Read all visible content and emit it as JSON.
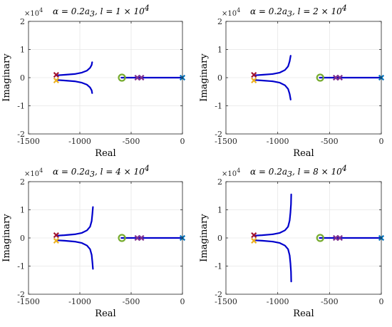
{
  "chart_data": [
    {
      "type": "line",
      "title": "α = 0.2a₃, l = 1 × 10⁴",
      "title_main": "α = 0.2a",
      "title_sub": "3",
      "title_rest": ", l = 1 × 10",
      "title_exp": "4",
      "xlabel": "Real",
      "ylabel": "Imaginary",
      "xlim": [
        -1500,
        0
      ],
      "ylim": [
        -2,
        2
      ],
      "y_multiplier": "×10",
      "y_multiplier_exp": "4",
      "xticks": [
        "-1500",
        "-1000",
        "-500",
        "0"
      ],
      "yticks": [
        "2",
        "1",
        "0",
        "-1",
        "-2"
      ],
      "grid": true,
      "branch_tip": {
        "x": -880,
        "y": 0.55
      },
      "series": [
        {
          "color": "#0000cc",
          "x": [
            -1230,
            -1150,
            -1050,
            -980,
            -930,
            -900,
            -885,
            -880
          ],
          "y": [
            0.08,
            0.1,
            0.13,
            0.18,
            0.25,
            0.35,
            0.45,
            0.55
          ]
        },
        {
          "color": "#0000cc",
          "x": [
            -1230,
            -1150,
            -1050,
            -980,
            -930,
            -900,
            -885,
            -880
          ],
          "y": [
            -0.08,
            -0.1,
            -0.13,
            -0.18,
            -0.25,
            -0.35,
            -0.45,
            -0.55
          ]
        },
        {
          "color": "#0000cc",
          "x": [
            -595,
            -430,
            -300,
            -150,
            0
          ],
          "y": [
            0,
            0,
            0,
            0,
            0
          ]
        }
      ],
      "poles": [
        {
          "x": -1230,
          "y": 0.1,
          "color": "#a2142f"
        },
        {
          "x": -1230,
          "y": -0.1,
          "color": "#edb120"
        },
        {
          "x": -440,
          "y": 0,
          "color": "#7e2f8e"
        },
        {
          "x": -400,
          "y": 0,
          "color": "#7e2f8e"
        },
        {
          "x": 0,
          "y": 0,
          "color": "#0072bd"
        }
      ],
      "zeros": [
        {
          "x": -590,
          "y": 0,
          "color": "#77ac30"
        }
      ]
    },
    {
      "type": "line",
      "title": "α = 0.2a₃, l = 2 × 10⁴",
      "title_main": "α = 0.2a",
      "title_sub": "3",
      "title_rest": ", l = 2 × 10",
      "title_exp": "4",
      "xlabel": "Real",
      "ylabel": "Imaginary",
      "xlim": [
        -1500,
        0
      ],
      "ylim": [
        -2,
        2
      ],
      "y_multiplier": "×10",
      "y_multiplier_exp": "4",
      "xticks": [
        "-1500",
        "-1000",
        "-500",
        "0"
      ],
      "yticks": [
        "2",
        "1",
        "0",
        "-1",
        "-2"
      ],
      "grid": true,
      "branch_tip": {
        "x": -875,
        "y": 0.78
      },
      "series": [
        {
          "color": "#0000cc",
          "x": [
            -1230,
            -1150,
            -1050,
            -980,
            -930,
            -900,
            -885,
            -875
          ],
          "y": [
            0.08,
            0.1,
            0.13,
            0.18,
            0.27,
            0.4,
            0.58,
            0.78
          ]
        },
        {
          "color": "#0000cc",
          "x": [
            -1230,
            -1150,
            -1050,
            -980,
            -930,
            -900,
            -885,
            -875
          ],
          "y": [
            -0.08,
            -0.1,
            -0.13,
            -0.18,
            -0.27,
            -0.4,
            -0.58,
            -0.78
          ]
        },
        {
          "color": "#0000cc",
          "x": [
            -595,
            -430,
            -300,
            -150,
            0
          ],
          "y": [
            0,
            0,
            0,
            0,
            0
          ]
        }
      ],
      "poles": [
        {
          "x": -1230,
          "y": 0.1,
          "color": "#a2142f"
        },
        {
          "x": -1230,
          "y": -0.1,
          "color": "#edb120"
        },
        {
          "x": -440,
          "y": 0,
          "color": "#7e2f8e"
        },
        {
          "x": -400,
          "y": 0,
          "color": "#7e2f8e"
        },
        {
          "x": 0,
          "y": 0,
          "color": "#0072bd"
        }
      ],
      "zeros": [
        {
          "x": -590,
          "y": 0,
          "color": "#77ac30"
        }
      ]
    },
    {
      "type": "line",
      "title": "α = 0.2a₃, l = 4 × 10⁴",
      "title_main": "α = 0.2a",
      "title_sub": "3",
      "title_rest": ", l = 4 × 10",
      "title_exp": "4",
      "xlabel": "Real",
      "ylabel": "Imaginary",
      "xlim": [
        -1500,
        0
      ],
      "ylim": [
        -2,
        2
      ],
      "y_multiplier": "×10",
      "y_multiplier_exp": "4",
      "xticks": [
        "-1500",
        "-1000",
        "-500",
        "0"
      ],
      "yticks": [
        "2",
        "1",
        "0",
        "-1",
        "-2"
      ],
      "grid": true,
      "branch_tip": {
        "x": -872,
        "y": 1.1
      },
      "series": [
        {
          "color": "#0000cc",
          "x": [
            -1230,
            -1150,
            -1050,
            -980,
            -930,
            -900,
            -885,
            -878,
            -872
          ],
          "y": [
            0.08,
            0.1,
            0.13,
            0.18,
            0.27,
            0.4,
            0.6,
            0.85,
            1.1
          ]
        },
        {
          "color": "#0000cc",
          "x": [
            -1230,
            -1150,
            -1050,
            -980,
            -930,
            -900,
            -885,
            -878,
            -872
          ],
          "y": [
            -0.08,
            -0.1,
            -0.13,
            -0.18,
            -0.27,
            -0.4,
            -0.6,
            -0.85,
            -1.1
          ]
        },
        {
          "color": "#0000cc",
          "x": [
            -595,
            -430,
            -300,
            -150,
            0
          ],
          "y": [
            0,
            0,
            0,
            0,
            0
          ]
        }
      ],
      "poles": [
        {
          "x": -1230,
          "y": 0.1,
          "color": "#a2142f"
        },
        {
          "x": -1230,
          "y": -0.1,
          "color": "#edb120"
        },
        {
          "x": -440,
          "y": 0,
          "color": "#7e2f8e"
        },
        {
          "x": -400,
          "y": 0,
          "color": "#7e2f8e"
        },
        {
          "x": 0,
          "y": 0,
          "color": "#0072bd"
        }
      ],
      "zeros": [
        {
          "x": -590,
          "y": 0,
          "color": "#77ac30"
        }
      ]
    },
    {
      "type": "line",
      "title": "α = 0.2a₃, l = 8 × 10⁴",
      "title_main": "α = 0.2a",
      "title_sub": "3",
      "title_rest": ", l = 8 × 10",
      "title_exp": "4",
      "xlabel": "Real",
      "ylabel": "Imaginary",
      "xlim": [
        -1500,
        0
      ],
      "ylim": [
        -2,
        2
      ],
      "y_multiplier": "×10",
      "y_multiplier_exp": "4",
      "xticks": [
        "-1500",
        "-1000",
        "-500",
        "0"
      ],
      "yticks": [
        "2",
        "1",
        "0",
        "-1",
        "-2"
      ],
      "grid": true,
      "branch_tip": {
        "x": -870,
        "y": 1.55
      },
      "series": [
        {
          "color": "#0000cc",
          "x": [
            -1230,
            -1150,
            -1050,
            -980,
            -930,
            -900,
            -885,
            -877,
            -872,
            -870
          ],
          "y": [
            0.08,
            0.1,
            0.13,
            0.18,
            0.27,
            0.4,
            0.62,
            0.9,
            1.2,
            1.55
          ]
        },
        {
          "color": "#0000cc",
          "x": [
            -1230,
            -1150,
            -1050,
            -980,
            -930,
            -900,
            -885,
            -877,
            -872,
            -870
          ],
          "y": [
            -0.08,
            -0.1,
            -0.13,
            -0.18,
            -0.27,
            -0.4,
            -0.62,
            -0.9,
            -1.2,
            -1.55
          ]
        },
        {
          "color": "#0000cc",
          "x": [
            -595,
            -430,
            -300,
            -150,
            0
          ],
          "y": [
            0,
            0,
            0,
            0,
            0
          ]
        }
      ],
      "poles": [
        {
          "x": -1230,
          "y": 0.1,
          "color": "#a2142f"
        },
        {
          "x": -1230,
          "y": -0.1,
          "color": "#edb120"
        },
        {
          "x": -440,
          "y": 0,
          "color": "#7e2f8e"
        },
        {
          "x": -400,
          "y": 0,
          "color": "#7e2f8e"
        },
        {
          "x": 0,
          "y": 0,
          "color": "#0072bd"
        }
      ],
      "zeros": [
        {
          "x": -590,
          "y": 0,
          "color": "#77ac30"
        }
      ]
    }
  ]
}
